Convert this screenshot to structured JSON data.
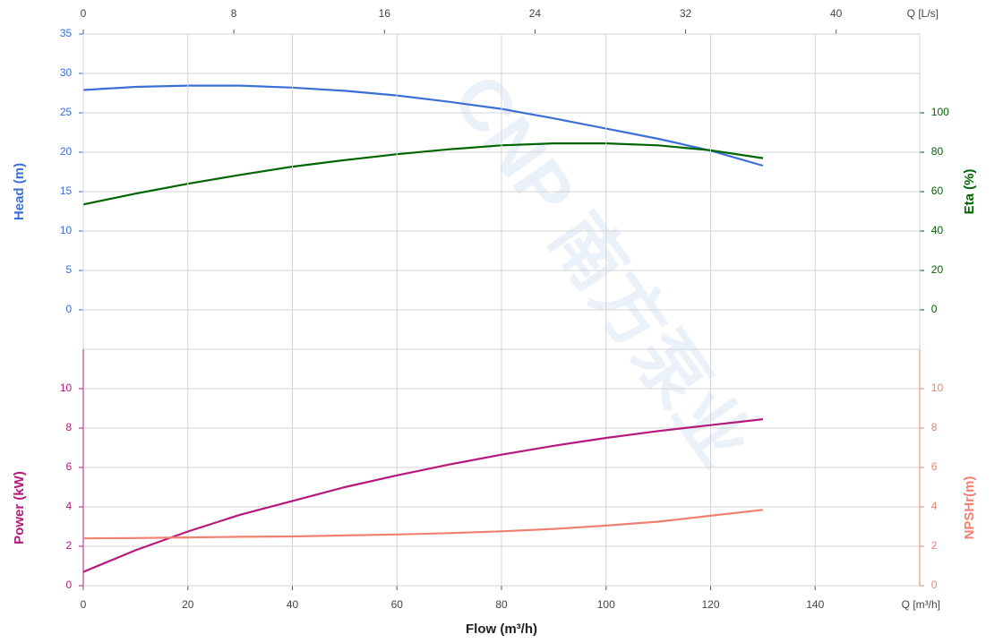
{
  "chart_data": [
    {
      "type": "line",
      "x2label": "Q [L/s]",
      "x2lim": [
        0,
        44.44
      ],
      "x2ticks": [
        0,
        8,
        16,
        24,
        32,
        40
      ],
      "xlim": [
        0,
        160
      ],
      "x": [
        0,
        10,
        20,
        30,
        40,
        50,
        60,
        70,
        80,
        90,
        100,
        110,
        120,
        130
      ],
      "ylabel": "Head (m)",
      "ylim": [
        -5,
        35
      ],
      "yticks": [
        0,
        5,
        10,
        15,
        20,
        25,
        30,
        35
      ],
      "ycolor": "#3c6fd6",
      "y2label": "Eta (%)",
      "y2lim": [
        -20,
        140
      ],
      "y2ticks": [
        0,
        20,
        40,
        60,
        80,
        100
      ],
      "y2color": "#006400",
      "grid": true,
      "series": [
        {
          "name": "Head",
          "color": "#3c6fd6",
          "values": [
            27.9,
            28.3,
            28.45,
            28.45,
            28.2,
            27.8,
            27.2,
            26.4,
            25.5,
            24.3,
            23,
            21.7,
            20.2,
            18.3
          ]
        },
        {
          "name": "Eta",
          "color": "#006400",
          "axis": "y2",
          "values": [
            53.5,
            59,
            64,
            68.5,
            72.7,
            76,
            79,
            81.5,
            83.5,
            84.5,
            84.5,
            83.5,
            81,
            77
          ]
        }
      ],
      "watermark": "CNP 南方泵业"
    },
    {
      "type": "line",
      "xlabel": "Flow (m³/h)",
      "xunit": "Q [m³/h]",
      "xlim": [
        0,
        160
      ],
      "xticks": [
        0,
        20,
        40,
        60,
        80,
        100,
        120,
        140
      ],
      "x": [
        0,
        10,
        20,
        30,
        40,
        50,
        60,
        70,
        80,
        90,
        100,
        110,
        120,
        130
      ],
      "ylabel": "Power (kW)",
      "ylim": [
        0,
        12
      ],
      "yticks": [
        0,
        2,
        4,
        6,
        8,
        10
      ],
      "ycolor": "#b5197c",
      "y2label": "NPSHr(m)",
      "y2lim": [
        0,
        12
      ],
      "y2ticks": [
        0,
        2,
        4,
        6,
        8,
        10
      ],
      "y2color": "#f08070",
      "grid": true,
      "series": [
        {
          "name": "Power",
          "color": "#b5197c",
          "values": [
            0.7,
            1.8,
            2.75,
            3.6,
            4.3,
            5.0,
            5.6,
            6.15,
            6.65,
            7.1,
            7.5,
            7.85,
            8.15,
            8.45
          ]
        },
        {
          "name": "NPSHr",
          "color": "#f08070",
          "axis": "y2",
          "values": [
            2.4,
            2.42,
            2.45,
            2.48,
            2.5,
            2.55,
            2.6,
            2.67,
            2.76,
            2.88,
            3.05,
            3.25,
            3.55,
            3.85
          ]
        }
      ]
    }
  ]
}
